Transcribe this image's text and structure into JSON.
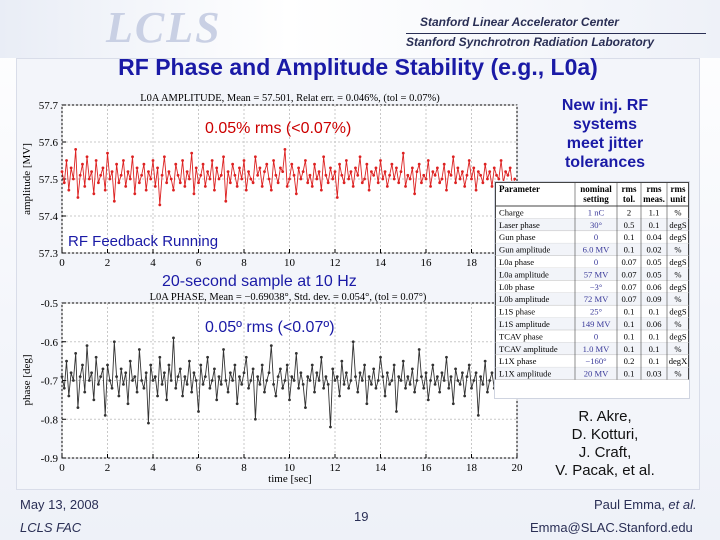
{
  "header": {
    "logo_text": "LCLS",
    "org_line1": "Stanford Linear Accelerator Center",
    "org_line2": "Stanford Synchrotron Radiation Laboratory"
  },
  "title": "RF Phase and Amplitude Stability (e.g., L0a)",
  "annotations": {
    "rms_amp": "0.05% rms (<0.07%)",
    "feedback": "RF Feedback Running",
    "sample": "20-second sample at 10 Hz",
    "rms_phase": "0.05º rms (<0.07º)"
  },
  "side_note": [
    "New inj. RF",
    "systems",
    "meet jitter",
    "tolerances"
  ],
  "authors": [
    "R. Akre,",
    "D. Kotturi,",
    "J. Craft,",
    "V. Pacak, et al."
  ],
  "footer": {
    "date": "May 13, 2008",
    "event": "LCLS FAC",
    "page": "19",
    "presenter_name": "Paul Emma, ",
    "presenter_etal": "et al.",
    "email": "Emma@SLAC.Stanford.edu"
  },
  "params_table": {
    "headers": [
      [
        "Parameter",
        ""
      ],
      [
        "nominal",
        "setting"
      ],
      [
        "rms",
        "tol."
      ],
      [
        "rms",
        "meas."
      ],
      [
        "rms",
        "unit"
      ]
    ],
    "rows": [
      [
        "Charge",
        "1 nC",
        "2",
        "1.1",
        "%"
      ],
      [
        "Laser phase",
        "30°",
        "0.5",
        "0.1",
        "degS"
      ],
      [
        "Gun phase",
        "0",
        "0.1",
        "0.04",
        "degS"
      ],
      [
        "Gun amplitude",
        "6.0 MV",
        "0.1",
        "0.02",
        "%"
      ],
      [
        "L0a phase",
        "0",
        "0.07",
        "0.05",
        "degS"
      ],
      [
        "L0a amplitude",
        "57 MV",
        "0.07",
        "0.05",
        "%"
      ],
      [
        "L0b phase",
        "−3°",
        "0.07",
        "0.06",
        "degS"
      ],
      [
        "L0b amplitude",
        "72 MV",
        "0.07",
        "0.09",
        "%"
      ],
      [
        "L1S phase",
        "25°",
        "0.1",
        "0.1",
        "degS"
      ],
      [
        "L1S amplitude",
        "149 MV",
        "0.1",
        "0.06",
        "%"
      ],
      [
        "TCAV phase",
        "0",
        "0.1",
        "0.1",
        "degS"
      ],
      [
        "TCAV amplitude",
        "1.0 MV",
        "0.1",
        "0.1",
        "%"
      ],
      [
        "L1X phase",
        "−160°",
        "0.2",
        "0.1",
        "degX"
      ],
      [
        "L1X amplitude",
        "20 MV",
        "0.1",
        "0.03",
        "%"
      ]
    ]
  },
  "chart_data": [
    {
      "type": "line",
      "title": "L0A AMPLITUDE, Mean = 57.501, Relat err. = 0.046%, (tol = 0.07%)",
      "xlabel": "",
      "ylabel": "amplitude [MV]",
      "xlim": [
        0,
        20
      ],
      "ylim": [
        57.3,
        57.7
      ],
      "xticks": [
        "0",
        "2",
        "4",
        "6",
        "8",
        "10",
        "12",
        "14",
        "16",
        "18",
        "20"
      ],
      "yticks": [
        "57.3",
        "57.4",
        "57.5",
        "57.6",
        "57.7"
      ],
      "series": [
        {
          "name": "L0A amplitude",
          "color": "#dd2222",
          "x_start": 0,
          "x_step": 0.1,
          "values": [
            57.52,
            57.49,
            57.55,
            57.47,
            57.53,
            57.5,
            57.58,
            57.45,
            57.51,
            57.54,
            57.48,
            57.56,
            57.5,
            57.52,
            57.46,
            57.55,
            57.49,
            57.51,
            57.53,
            57.47,
            57.57,
            57.5,
            57.52,
            57.44,
            57.54,
            57.49,
            57.51,
            57.55,
            57.48,
            57.52,
            57.5,
            57.56,
            57.46,
            57.53,
            57.49,
            57.51,
            57.54,
            57.47,
            57.52,
            57.5,
            57.55,
            57.48,
            57.53,
            57.43,
            57.51,
            57.56,
            57.49,
            57.52,
            57.5,
            57.47,
            57.54,
            57.51,
            57.49,
            57.55,
            57.48,
            57.52,
            57.5,
            57.57,
            57.46,
            57.53,
            57.49,
            57.51,
            57.54,
            57.48,
            57.52,
            57.5,
            57.55,
            57.47,
            57.53,
            57.5,
            57.51,
            57.56,
            57.44,
            57.52,
            57.49,
            57.54,
            57.51,
            57.48,
            57.53,
            57.5,
            57.55,
            57.47,
            57.52,
            57.5,
            57.49,
            57.56,
            57.51,
            57.53,
            57.48,
            57.52,
            57.54,
            57.5,
            57.47,
            57.55,
            57.51,
            57.49,
            57.53,
            57.52,
            57.58,
            57.48,
            57.5,
            57.54,
            57.51,
            57.46,
            57.53,
            57.5,
            57.52,
            57.55,
            57.49,
            57.51,
            57.48,
            57.54,
            57.5,
            57.52,
            57.47,
            57.56,
            57.51,
            57.49,
            57.53,
            57.5,
            57.52,
            57.45,
            57.54,
            57.51,
            57.49,
            57.55,
            57.5,
            57.52,
            57.48,
            57.53,
            57.51,
            57.56,
            57.49,
            57.5,
            57.54,
            57.47,
            57.52,
            57.51,
            57.53,
            57.49,
            57.55,
            57.5,
            57.52,
            57.48,
            57.51,
            57.54,
            57.5,
            57.53,
            57.49,
            57.52,
            57.57,
            57.48,
            57.51,
            57.5,
            57.53,
            57.46,
            57.52,
            57.54,
            57.49,
            57.51,
            57.5,
            57.55,
            57.48,
            57.52,
            57.51,
            57.53,
            57.49,
            57.5,
            57.54,
            57.47,
            57.52,
            57.51,
            57.56,
            57.49,
            57.53,
            57.5,
            57.52,
            57.48,
            57.51,
            57.55,
            57.5,
            57.53,
            57.47,
            57.52,
            57.51,
            57.49,
            57.54,
            57.5,
            57.52,
            57.48,
            57.53,
            57.51,
            57.5,
            57.55,
            57.49,
            57.52,
            57.51,
            57.53,
            57.48,
            57.5
          ]
        }
      ]
    },
    {
      "type": "line",
      "title": "L0A PHASE, Mean = −0.69038°, Std. dev. = 0.054°, (tol = 0.07°)",
      "xlabel": "time [sec]",
      "ylabel": "phase [deg]",
      "xlim": [
        0,
        20
      ],
      "ylim": [
        -0.9,
        -0.5
      ],
      "xticks": [
        "0",
        "2",
        "4",
        "6",
        "8",
        "10",
        "12",
        "14",
        "16",
        "18",
        "20"
      ],
      "yticks": [
        "-0.9",
        "-0.8",
        "-0.7",
        "-0.6",
        "-0.5"
      ],
      "series": [
        {
          "name": "L0A phase",
          "color": "#333333",
          "x_start": 0,
          "x_step": 0.1,
          "values": [
            -0.69,
            -0.72,
            -0.65,
            -0.74,
            -0.68,
            -0.7,
            -0.63,
            -0.77,
            -0.69,
            -0.66,
            -0.73,
            -0.61,
            -0.7,
            -0.68,
            -0.75,
            -0.64,
            -0.71,
            -0.69,
            -0.67,
            -0.79,
            -0.66,
            -0.7,
            -0.72,
            -0.6,
            -0.69,
            -0.74,
            -0.67,
            -0.71,
            -0.68,
            -0.76,
            -0.65,
            -0.7,
            -0.69,
            -0.73,
            -0.62,
            -0.7,
            -0.72,
            -0.68,
            -0.81,
            -0.66,
            -0.7,
            -0.69,
            -0.74,
            -0.64,
            -0.71,
            -0.68,
            -0.75,
            -0.66,
            -0.7,
            -0.59,
            -0.72,
            -0.69,
            -0.67,
            -0.74,
            -0.69,
            -0.71,
            -0.65,
            -0.73,
            -0.68,
            -0.7,
            -0.78,
            -0.66,
            -0.71,
            -0.69,
            -0.64,
            -0.72,
            -0.7,
            -0.67,
            -0.75,
            -0.69,
            -0.71,
            -0.62,
            -0.7,
            -0.73,
            -0.68,
            -0.7,
            -0.66,
            -0.76,
            -0.69,
            -0.71,
            -0.68,
            -0.64,
            -0.72,
            -0.7,
            -0.67,
            -0.8,
            -0.69,
            -0.71,
            -0.66,
            -0.73,
            -0.7,
            -0.68,
            -0.61,
            -0.71,
            -0.74,
            -0.69,
            -0.67,
            -0.72,
            -0.7,
            -0.66,
            -0.75,
            -0.69,
            -0.7,
            -0.63,
            -0.72,
            -0.68,
            -0.71,
            -0.77,
            -0.69,
            -0.7,
            -0.66,
            -0.73,
            -0.68,
            -0.7,
            -0.64,
            -0.72,
            -0.69,
            -0.71,
            -0.82,
            -0.67,
            -0.7,
            -0.69,
            -0.74,
            -0.65,
            -0.71,
            -0.68,
            -0.72,
            -0.7,
            -0.6,
            -0.69,
            -0.73,
            -0.68,
            -0.7,
            -0.66,
            -0.76,
            -0.69,
            -0.71,
            -0.67,
            -0.72,
            -0.7,
            -0.64,
            -0.69,
            -0.74,
            -0.68,
            -0.71,
            -0.7,
            -0.66,
            -0.78,
            -0.69,
            -0.7,
            -0.65,
            -0.72,
            -0.69,
            -0.71,
            -0.67,
            -0.73,
            -0.7,
            -0.62,
            -0.69,
            -0.72,
            -0.68,
            -0.75,
            -0.7,
            -0.66,
            -0.71,
            -0.69,
            -0.73,
            -0.68,
            -0.7,
            -0.64,
            -0.72,
            -0.69,
            -0.76,
            -0.67,
            -0.7,
            -0.71,
            -0.68,
            -0.74,
            -0.69,
            -0.66,
            -0.72,
            -0.7,
            -0.68,
            -0.79,
            -0.69,
            -0.71,
            -0.65,
            -0.73,
            -0.7,
            -0.68,
            -0.72,
            -0.69,
            -0.63,
            -0.71,
            -0.7,
            -0.74,
            -0.68,
            -0.69
          ]
        }
      ]
    }
  ]
}
